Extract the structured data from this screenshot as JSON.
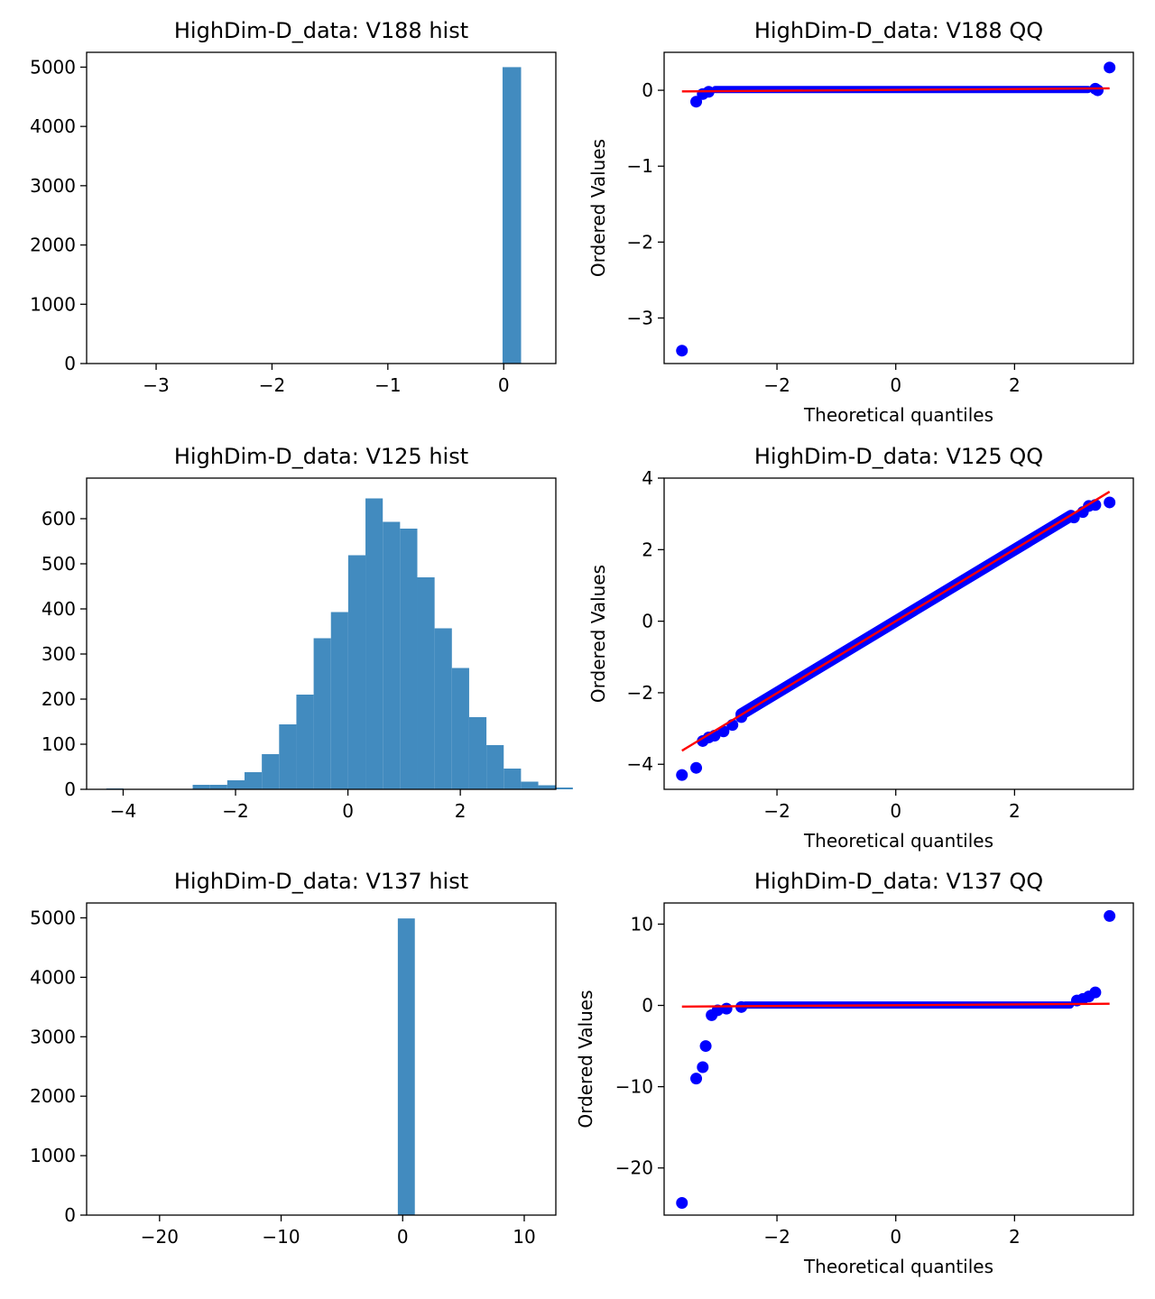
{
  "chart_data": [
    {
      "type": "bar",
      "kind": "histogram",
      "title": "HighDim-D_data: V188 hist",
      "xlabel": "",
      "ylabel": "",
      "xlim": [
        -3.6,
        0.45
      ],
      "ylim": [
        0,
        5250
      ],
      "xticks": [
        -3,
        -2,
        -1,
        0
      ],
      "yticks": [
        0,
        1000,
        2000,
        3000,
        4000,
        5000
      ],
      "bins": [
        {
          "x0": -0.01,
          "x1": 0.15,
          "count": 5000
        }
      ],
      "grid": false
    },
    {
      "type": "scatter",
      "kind": "qq",
      "title": "HighDim-D_data: V188 QQ",
      "xlabel": "Theoretical quantiles",
      "ylabel": "Ordered Values",
      "xlim": [
        -3.9,
        4.0
      ],
      "ylim": [
        -3.6,
        0.5
      ],
      "xticks": [
        -2,
        0,
        2
      ],
      "yticks": [
        -3,
        -2,
        -1,
        0
      ],
      "fit_line": {
        "x": [
          -3.6,
          3.6
        ],
        "y": [
          -0.015,
          0.025
        ]
      },
      "points": [
        [
          -3.6,
          -3.43
        ],
        [
          -3.36,
          -0.15
        ],
        [
          -3.25,
          -0.05
        ],
        [
          -3.15,
          -0.02
        ],
        [
          3.4,
          0.0
        ],
        [
          3.36,
          0.02
        ],
        [
          3.6,
          0.3
        ]
      ],
      "dense_band": {
        "x0": -3.1,
        "x1": 3.3,
        "y0": 0.0,
        "y1": 0.02
      },
      "grid": false
    },
    {
      "type": "bar",
      "kind": "histogram",
      "title": "HighDim-D_data: V125 hist",
      "xlabel": "",
      "ylabel": "",
      "xlim": [
        -4.65,
        3.7
      ],
      "ylim": [
        0,
        690
      ],
      "xticks": [
        -4,
        -2,
        0,
        2
      ],
      "yticks": [
        0,
        100,
        200,
        300,
        400,
        500,
        600
      ],
      "bin_start": -4.3,
      "bin_width": 0.3075,
      "counts": [
        2,
        1,
        0,
        0,
        1,
        10,
        10,
        20,
        38,
        78,
        144,
        210,
        335,
        393,
        519,
        645,
        593,
        578,
        470,
        357,
        269,
        160,
        98,
        46,
        17,
        9,
        4
      ],
      "grid": false
    },
    {
      "type": "scatter",
      "kind": "qq",
      "title": "HighDim-D_data: V125 QQ",
      "xlabel": "Theoretical quantiles",
      "ylabel": "Ordered Values",
      "xlim": [
        -3.9,
        4.0
      ],
      "ylim": [
        -4.7,
        4.0
      ],
      "xticks": [
        -2,
        0,
        2
      ],
      "yticks": [
        -4,
        -2,
        0,
        2,
        4
      ],
      "fit_line": {
        "x": [
          -3.6,
          3.6
        ],
        "y": [
          -3.62,
          3.62
        ]
      },
      "points": [
        [
          -3.6,
          -4.3
        ],
        [
          -3.36,
          -4.1
        ],
        [
          -3.25,
          -3.35
        ],
        [
          -3.15,
          -3.25
        ],
        [
          -3.05,
          -3.2
        ],
        [
          -2.9,
          -3.08
        ],
        [
          -2.75,
          -2.9
        ],
        [
          -2.6,
          -2.68
        ],
        [
          3.0,
          2.9
        ],
        [
          3.15,
          3.05
        ],
        [
          3.25,
          3.22
        ],
        [
          3.36,
          3.25
        ],
        [
          3.6,
          3.32
        ]
      ],
      "dense_curve": {
        "x0": -2.6,
        "x1": 2.95,
        "slope": 1.0,
        "intercept": 0.0
      },
      "grid": false
    },
    {
      "type": "bar",
      "kind": "histogram",
      "title": "HighDim-D_data: V137 hist",
      "xlabel": "",
      "ylabel": "",
      "xlim": [
        -26.0,
        12.6
      ],
      "ylim": [
        0,
        5250
      ],
      "xticks": [
        -20,
        -10,
        0,
        10
      ],
      "yticks": [
        0,
        1000,
        2000,
        3000,
        4000,
        5000
      ],
      "bins": [
        {
          "x0": -0.4,
          "x1": 1.0,
          "count": 4990
        }
      ],
      "grid": false
    },
    {
      "type": "scatter",
      "kind": "qq",
      "title": "HighDim-D_data: V137 QQ",
      "xlabel": "Theoretical quantiles",
      "ylabel": "Ordered Values",
      "xlim": [
        -3.9,
        4.0
      ],
      "ylim": [
        -25.8,
        12.6
      ],
      "xticks": [
        -2,
        0,
        2
      ],
      "yticks": [
        -20,
        -10,
        0,
        10
      ],
      "fit_line": {
        "x": [
          -3.6,
          3.6
        ],
        "y": [
          -0.15,
          0.2
        ]
      },
      "points": [
        [
          -3.6,
          -24.3
        ],
        [
          -3.36,
          -9.0
        ],
        [
          -3.25,
          -7.6
        ],
        [
          -3.2,
          -5.0
        ],
        [
          -3.1,
          -1.2
        ],
        [
          -3.0,
          -0.6
        ],
        [
          -2.85,
          -0.4
        ],
        [
          -2.6,
          -0.2
        ],
        [
          3.05,
          0.6
        ],
        [
          3.15,
          0.8
        ],
        [
          3.25,
          1.1
        ],
        [
          3.36,
          1.6
        ],
        [
          3.6,
          11.0
        ]
      ],
      "dense_band": {
        "x0": -2.6,
        "x1": 3.0,
        "y0": -0.05,
        "y1": 0.15
      },
      "grid": false
    }
  ]
}
